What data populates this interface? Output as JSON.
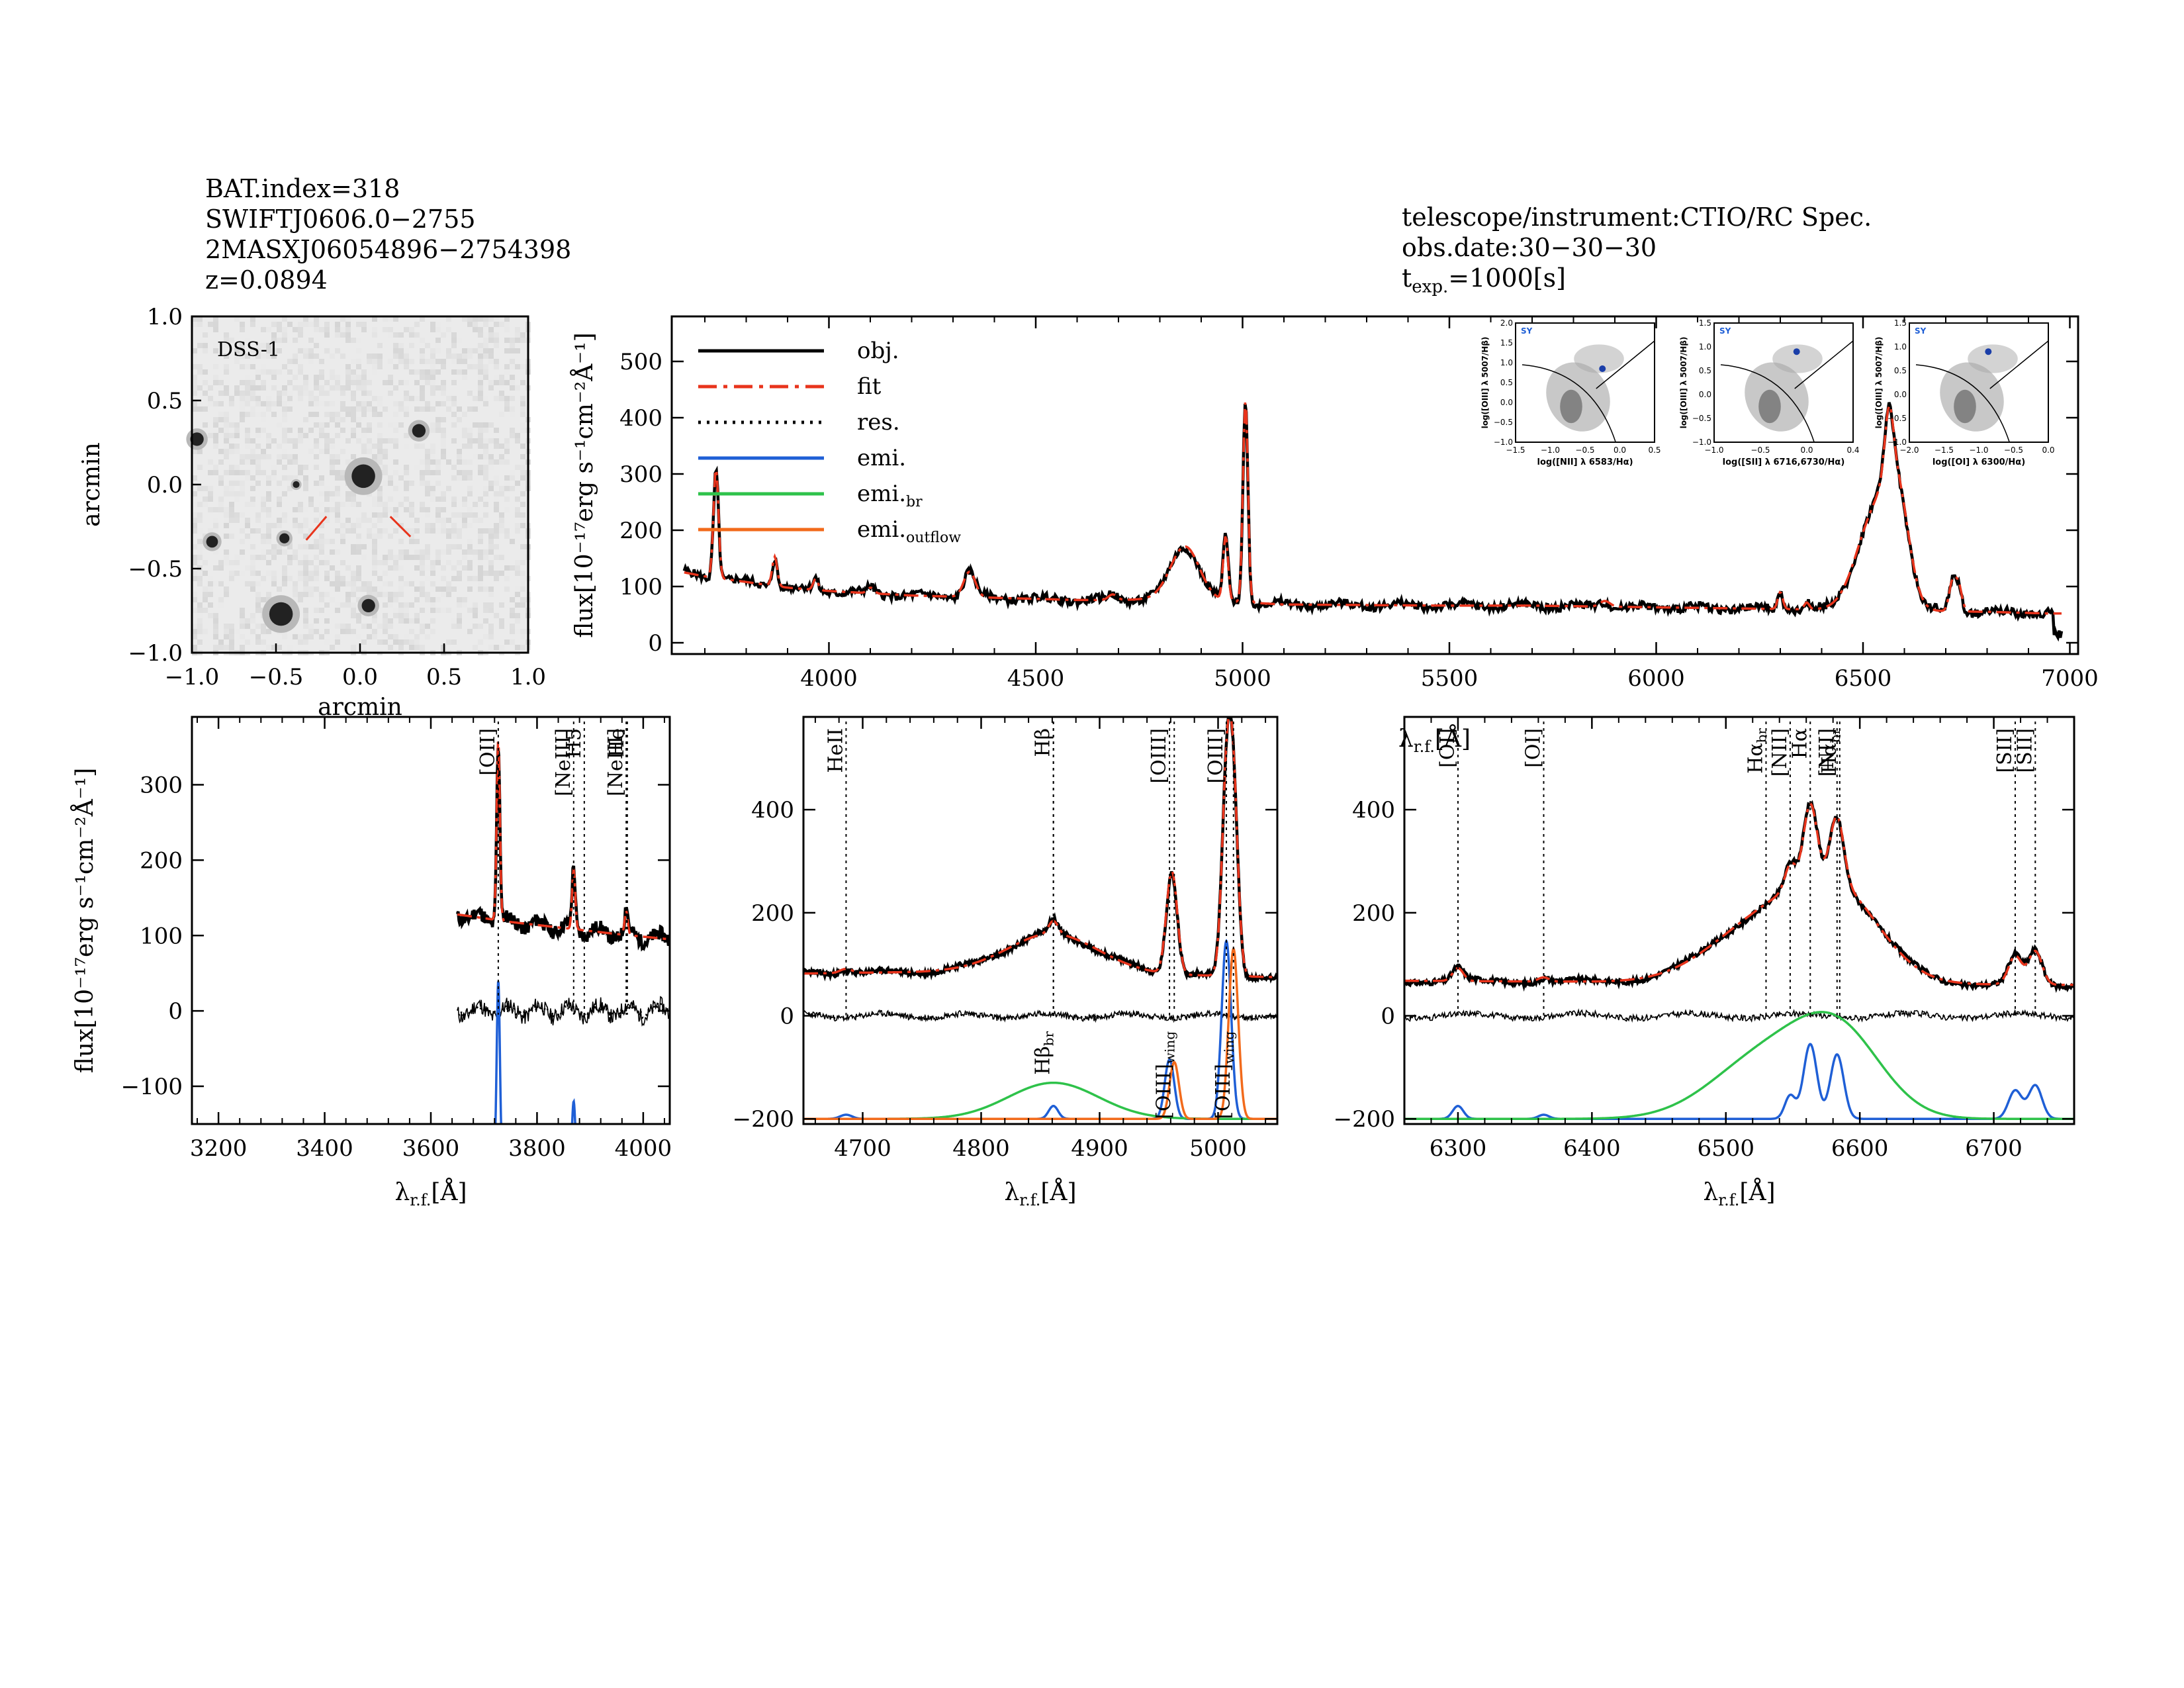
{
  "header_left": {
    "bat_index": "BAT.index=318",
    "swift_name": "SWIFTJ0606.0−2755",
    "twomass_name": "2MASXJ06054896−2754398",
    "redshift": "z=0.0894"
  },
  "header_right": {
    "instrument": "telescope/instrument:CTIO/RC Spec.",
    "obs_date": "obs.date:30−30−30",
    "texp_prefix": "t",
    "texp_sub": "exp.",
    "texp_value": "=1000[s]"
  },
  "colors": {
    "obj": "#000000",
    "fit": "#e8341c",
    "res": "#000000",
    "emi": "#1f5fd6",
    "emi_br": "#2ec24a",
    "emi_outflow": "#f26a1b",
    "image_bg": "#ebebeb"
  },
  "image_panel": {
    "label": "DSS-1",
    "xlabel": "arcmin",
    "ylabel": "arcmin",
    "xlim": [
      -1.0,
      1.0
    ],
    "ylim": [
      -1.0,
      1.0
    ],
    "ticks": [
      "−1.0",
      "−0.5",
      "0.0",
      "0.5",
      "1.0"
    ],
    "sources": [
      {
        "x": 0.02,
        "y": 0.05,
        "r": 0.07
      },
      {
        "x": -0.47,
        "y": -0.77,
        "r": 0.07
      },
      {
        "x": 0.35,
        "y": 0.32,
        "r": 0.04
      },
      {
        "x": -0.97,
        "y": 0.27,
        "r": 0.04
      },
      {
        "x": -0.88,
        "y": -0.34,
        "r": 0.035
      },
      {
        "x": -0.45,
        "y": -0.32,
        "r": 0.03
      },
      {
        "x": 0.05,
        "y": -0.72,
        "r": 0.04
      },
      {
        "x": -0.38,
        "y": 0.0,
        "r": 0.02
      }
    ]
  },
  "chart_data": [
    {
      "type": "line",
      "id": "full-spectrum",
      "xlabel": "λ",
      "xlabel_sub": "r.f.",
      "xlabel_unit": "[Å]",
      "ylabel": "flux[10⁻¹⁷erg s⁻¹cm⁻²Å⁻¹]",
      "xlim": [
        3620,
        7020
      ],
      "ylim": [
        -20,
        580
      ],
      "xticks": [
        4000,
        4500,
        5000,
        5500,
        6000,
        6500,
        7000
      ],
      "yticks": [
        0,
        100,
        200,
        300,
        400,
        500
      ],
      "continuum": [
        [
          3650,
          125
        ],
        [
          3700,
          118
        ],
        [
          3800,
          108
        ],
        [
          3900,
          98
        ],
        [
          4000,
          92
        ],
        [
          4100,
          88
        ],
        [
          4200,
          84
        ],
        [
          4300,
          82
        ],
        [
          4400,
          80
        ],
        [
          4500,
          78
        ],
        [
          4600,
          76
        ],
        [
          4700,
          76
        ],
        [
          4800,
          78
        ],
        [
          5000,
          72
        ],
        [
          5100,
          68
        ],
        [
          5300,
          67
        ],
        [
          5500,
          66
        ],
        [
          5700,
          66
        ],
        [
          5900,
          64
        ],
        [
          6100,
          62
        ],
        [
          6300,
          60
        ],
        [
          6500,
          58
        ],
        [
          6800,
          55
        ],
        [
          6950,
          52
        ]
      ],
      "lines": [
        {
          "center": 3727,
          "amp": 195,
          "sigma": 6
        },
        {
          "center": 3869,
          "amp": 52,
          "sigma": 6
        },
        {
          "center": 3968,
          "amp": 20,
          "sigma": 6
        },
        {
          "center": 4101,
          "amp": 10,
          "sigma": 8
        },
        {
          "center": 4340,
          "amp": 45,
          "sigma": 14
        },
        {
          "center": 4686,
          "amp": 10,
          "sigma": 10
        },
        {
          "center": 4861,
          "amp": 95,
          "sigma": 35
        },
        {
          "center": 4959,
          "amp": 115,
          "sigma": 6
        },
        {
          "center": 5007,
          "amp": 360,
          "sigma": 6
        },
        {
          "center": 5876,
          "amp": 10,
          "sigma": 12
        },
        {
          "center": 6300,
          "amp": 30,
          "sigma": 6
        },
        {
          "center": 6364,
          "amp": 12,
          "sigma": 6
        },
        {
          "center": 6530,
          "amp": 170,
          "sigma": 45
        },
        {
          "center": 6583,
          "amp": 160,
          "sigma": 28
        },
        {
          "center": 6563,
          "amp": 110,
          "sigma": 10
        },
        {
          "center": 6716,
          "amp": 50,
          "sigma": 8
        },
        {
          "center": 6731,
          "amp": 45,
          "sigma": 8
        }
      ],
      "legend": [
        {
          "label": "obj.",
          "sub": "",
          "style": "obj"
        },
        {
          "label": "fit",
          "sub": "",
          "style": "fit"
        },
        {
          "label": "res.",
          "sub": "",
          "style": "res"
        },
        {
          "label": "emi.",
          "sub": "",
          "style": "emi"
        },
        {
          "label": "emi.",
          "sub": "br",
          "style": "emi_br"
        },
        {
          "label": "emi.",
          "sub": "outflow",
          "style": "emi_outflow"
        }
      ],
      "bpt_insets": [
        {
          "label": "SY",
          "xlabel": "log([NII] λ 6583/Hα)",
          "ylabel": "log([OIII] λ 5007/Hβ)",
          "xlim": [
            -1.5,
            0.5
          ],
          "ylim": [
            -1.0,
            2.0
          ],
          "xticks": [
            "−1.5",
            "−1.0",
            "−0.5",
            "0.0",
            "0.5"
          ],
          "yticks": [
            "−1.0",
            "−0.5",
            "0.0",
            "0.5",
            "1.0",
            "1.5",
            "2.0"
          ],
          "point": [
            -0.25,
            0.85
          ]
        },
        {
          "label": "SY",
          "xlabel": "log([SII] λ 6716,6730/Hα)",
          "ylabel": "log([OIII] λ 5007/Hβ)",
          "xlim": [
            -1.2,
            0.4
          ],
          "ylim": [
            -1.0,
            1.5
          ],
          "xticks": [
            "−1.0",
            "−0.5",
            "0.0",
            "0.4"
          ],
          "yticks": [
            "−1.0",
            "−0.5",
            "0.0",
            "0.5",
            "1.0",
            "1.5"
          ],
          "point": [
            -0.25,
            0.9
          ]
        },
        {
          "label": "SY",
          "xlabel": "log([OI] λ 6300/Hα)",
          "ylabel": "log([OIII] λ 5007/Hβ)",
          "xlim": [
            -2.2,
            0.0
          ],
          "ylim": [
            -1.0,
            1.5
          ],
          "xticks": [
            "−2.0",
            "−1.5",
            "−1.0",
            "−0.5",
            "0.0"
          ],
          "yticks": [
            "−1.0",
            "−0.5",
            "0.0",
            "0.5",
            "1.0",
            "1.5"
          ],
          "point": [
            -0.95,
            0.9
          ]
        }
      ]
    },
    {
      "type": "line",
      "id": "oii-region",
      "xlabel": "λ",
      "xlabel_sub": "r.f.",
      "xlabel_unit": "[Å]",
      "ylabel": "flux[10⁻¹⁷erg s⁻¹cm⁻²Å⁻¹]",
      "xlim": [
        3150,
        4050
      ],
      "ylim": [
        -150,
        390
      ],
      "xticks": [
        3200,
        3400,
        3600,
        3800,
        4000
      ],
      "yticks": [
        -100,
        0,
        100,
        200,
        300
      ],
      "data_start": 3650,
      "continuum": [
        [
          3650,
          128
        ],
        [
          3750,
          118
        ],
        [
          3850,
          110
        ],
        [
          3950,
          102
        ],
        [
          4050,
          95
        ]
      ],
      "emi_lines": [
        {
          "center": 3727,
          "amp": 240,
          "sigma": 3
        },
        {
          "center": 3869,
          "amp": 80,
          "sigma": 3
        },
        {
          "center": 3968,
          "amp": 32,
          "sigma": 3
        }
      ],
      "line_marks": [
        {
          "label": "[OII]",
          "x": 3727,
          "style": "vertical"
        },
        {
          "label": "[NeIII]",
          "x": 3869,
          "style": "vertical"
        },
        {
          "label": "H5",
          "x": 3889,
          "style": "horizontal"
        },
        {
          "label": "[NeIII]",
          "x": 3968,
          "style": "vertical"
        },
        {
          "label": "He",
          "x": 3970,
          "style": "horizontal"
        }
      ]
    },
    {
      "type": "line",
      "id": "hbeta-oiii-region",
      "xlabel": "λ",
      "xlabel_sub": "r.f.",
      "xlabel_unit": "[Å]",
      "xlim": [
        4650,
        5050
      ],
      "ylim": [
        -210,
        580
      ],
      "xticks": [
        4700,
        4800,
        4900,
        5000
      ],
      "yticks": [
        -200,
        0,
        200,
        400
      ],
      "continuum": [
        [
          4650,
          82
        ],
        [
          4750,
          85
        ],
        [
          4850,
          90
        ],
        [
          4950,
          80
        ],
        [
          5050,
          75
        ]
      ],
      "emi_lines": [
        {
          "center": 4686,
          "amp": 8,
          "sigma": 5,
          "kind": "emi"
        },
        {
          "center": 4861,
          "amp": 25,
          "sigma": 4,
          "kind": "emi"
        },
        {
          "center": 4861,
          "amp": 70,
          "sigma": 38,
          "kind": "emi_br"
        },
        {
          "center": 4959,
          "amp": 115,
          "sigma": 4,
          "kind": "emi"
        },
        {
          "center": 4963,
          "amp": 110,
          "sigma": 4,
          "kind": "emi_outflow"
        },
        {
          "center": 5007,
          "amp": 345,
          "sigma": 4,
          "kind": "emi"
        },
        {
          "center": 5013,
          "amp": 330,
          "sigma": 4,
          "kind": "emi_outflow"
        }
      ],
      "line_marks": [
        {
          "label": "HeII",
          "x": 4686
        },
        {
          "label": "Hβ",
          "x": 4861
        },
        {
          "label": "Hβ",
          "sub": "br",
          "x": 4861,
          "low": true
        },
        {
          "label": "[OIII]",
          "x": 4959
        },
        {
          "label": "[OIII]",
          "sub": "wing",
          "x": 4963,
          "low": true
        },
        {
          "label": "[OIII]",
          "x": 5007
        },
        {
          "label": "[OIII]",
          "sub": "wing",
          "x": 5013,
          "low": true
        }
      ]
    },
    {
      "type": "line",
      "id": "halpha-region",
      "xlabel": "λ",
      "xlabel_sub": "r.f.",
      "xlabel_unit": "[Å]",
      "xlim": [
        6260,
        6760
      ],
      "ylim": [
        -210,
        580
      ],
      "xticks": [
        6300,
        6400,
        6500,
        6600,
        6700
      ],
      "yticks": [
        -200,
        0,
        200,
        400
      ],
      "continuum": [
        [
          6260,
          68
        ],
        [
          6400,
          66
        ],
        [
          6600,
          62
        ],
        [
          6760,
          60
        ]
      ],
      "emi_lines": [
        {
          "center": 6300,
          "amp": 25,
          "sigma": 4,
          "kind": "emi"
        },
        {
          "center": 6364,
          "amp": 8,
          "sigma": 4,
          "kind": "emi"
        },
        {
          "center": 6530,
          "amp": 120,
          "sigma": 40,
          "kind": "emi_br"
        },
        {
          "center": 6585,
          "amp": 150,
          "sigma": 32,
          "kind": "emi_br"
        },
        {
          "center": 6548,
          "amp": 45,
          "sigma": 4,
          "kind": "emi"
        },
        {
          "center": 6563,
          "amp": 145,
          "sigma": 5,
          "kind": "emi"
        },
        {
          "center": 6583,
          "amp": 125,
          "sigma": 5,
          "kind": "emi"
        },
        {
          "center": 6716,
          "amp": 55,
          "sigma": 5,
          "kind": "emi"
        },
        {
          "center": 6731,
          "amp": 65,
          "sigma": 5,
          "kind": "emi"
        }
      ],
      "line_marks": [
        {
          "label": "[OI]",
          "x": 6300
        },
        {
          "label": "[OI]",
          "x": 6364
        },
        {
          "label": "Hα",
          "sub": "br",
          "x": 6530
        },
        {
          "label": "[NII]",
          "x": 6548
        },
        {
          "label": "Hα",
          "x": 6563
        },
        {
          "label": "[NII]",
          "x": 6583
        },
        {
          "label": "Hα",
          "sub": "br",
          "x": 6585
        },
        {
          "label": "[SII]",
          "x": 6716
        },
        {
          "label": "[SII]",
          "x": 6731
        }
      ]
    }
  ]
}
